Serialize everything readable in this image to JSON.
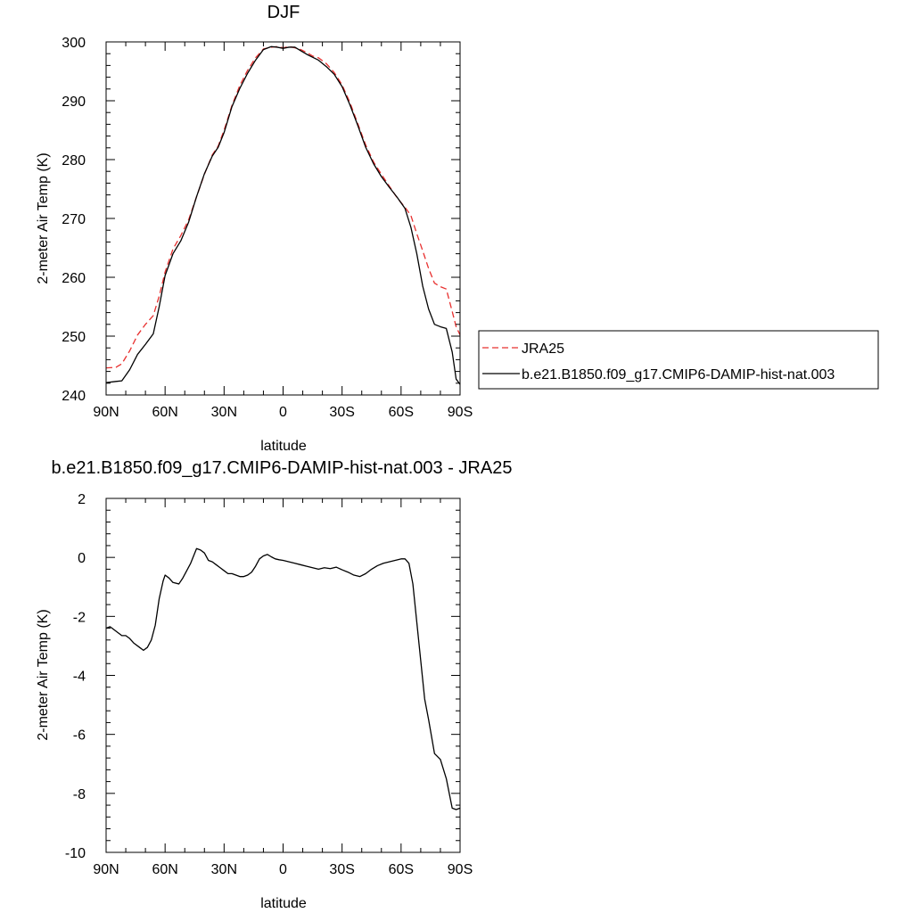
{
  "chart_data": [
    {
      "type": "line",
      "title": "DJF",
      "xlabel": "latitude",
      "ylabel": "2-meter Air Temp (K)",
      "xlim": [
        -90,
        90
      ],
      "ylim": [
        240,
        300
      ],
      "x_ticks": [
        -90,
        -60,
        -30,
        0,
        30,
        60,
        90
      ],
      "x_tick_labels": [
        "90N",
        "60N",
        "30N",
        "0",
        "30S",
        "60S",
        "90S"
      ],
      "y_ticks": [
        240,
        250,
        260,
        270,
        280,
        290,
        300
      ],
      "y_tick_labels": [
        "240",
        "250",
        "260",
        "270",
        "280",
        "290",
        "300"
      ],
      "x_minor_step": 10,
      "y_minor_step": 2,
      "legend_placement": "right",
      "series": [
        {
          "name": "JRA25",
          "color": "#e8302f",
          "dash": "dashed",
          "x": [
            -90,
            -85,
            -82,
            -78,
            -74,
            -70,
            -66,
            -63,
            -60,
            -56,
            -52,
            -48,
            -44,
            -40,
            -36,
            -33,
            -30,
            -26,
            -22,
            -18,
            -14,
            -10,
            -6,
            -3,
            0,
            3,
            6,
            9,
            12,
            15,
            18,
            22,
            26,
            30,
            34,
            38,
            42,
            46,
            50,
            54,
            58,
            62,
            65,
            68,
            71,
            74,
            77,
            80,
            83,
            86,
            88,
            90
          ],
          "y": [
            244.6,
            244.7,
            245.3,
            247.5,
            250.2,
            252.0,
            253.5,
            256.8,
            260.9,
            264.8,
            267.1,
            269.8,
            273.7,
            277.5,
            280.8,
            282.3,
            285.0,
            289.2,
            292.6,
            295.2,
            297.3,
            298.8,
            299.1,
            299.2,
            299.0,
            299.2,
            299.0,
            298.7,
            298.2,
            297.6,
            297.3,
            296.3,
            294.8,
            292.7,
            289.7,
            286.1,
            282.5,
            279.6,
            277.5,
            275.5,
            273.5,
            271.9,
            270.5,
            267.4,
            264.5,
            261.5,
            259.0,
            258.4,
            258.0,
            254.2,
            251.6,
            250.2
          ]
        },
        {
          "name": "b.e21.B1850.f09_g17.CMIP6-DAMIP-hist-nat.003",
          "color": "#000000",
          "dash": "solid",
          "x": [
            -90,
            -85,
            -82,
            -78,
            -74,
            -70,
            -66,
            -63,
            -60,
            -56,
            -52,
            -48,
            -44,
            -40,
            -36,
            -33,
            -30,
            -26,
            -22,
            -18,
            -14,
            -10,
            -6,
            -3,
            0,
            3,
            6,
            9,
            12,
            15,
            18,
            22,
            26,
            30,
            34,
            38,
            42,
            46,
            50,
            54,
            58,
            62,
            65,
            68,
            71,
            74,
            77,
            80,
            83,
            86,
            88,
            90
          ],
          "y": [
            242.1,
            242.3,
            242.4,
            244.3,
            246.9,
            248.6,
            250.4,
            255.0,
            260.3,
            264.0,
            266.2,
            269.4,
            273.7,
            277.6,
            280.6,
            282.1,
            284.6,
            289.0,
            292.1,
            294.7,
            296.9,
            298.7,
            299.2,
            299.1,
            298.9,
            299.1,
            299.1,
            298.5,
            297.9,
            297.4,
            296.9,
            295.8,
            294.5,
            292.4,
            289.3,
            285.8,
            282.1,
            279.3,
            277.1,
            275.3,
            273.6,
            271.7,
            268.5,
            264.0,
            258.5,
            254.6,
            252.0,
            251.6,
            251.3,
            247.3,
            242.7,
            241.8
          ]
        }
      ]
    },
    {
      "type": "line",
      "title": "b.e21.B1850.f09_g17.CMIP6-DAMIP-hist-nat.003 - JRA25",
      "xlabel": "latitude",
      "ylabel": "2-meter Air Temp (K)",
      "xlim": [
        -90,
        90
      ],
      "ylim": [
        -10,
        2
      ],
      "x_ticks": [
        -90,
        -60,
        -30,
        0,
        30,
        60,
        90
      ],
      "x_tick_labels": [
        "90N",
        "60N",
        "30N",
        "0",
        "30S",
        "60S",
        "90S"
      ],
      "y_ticks": [
        -10,
        -8,
        -6,
        -4,
        -2,
        0,
        2
      ],
      "y_tick_labels": [
        "-10",
        "-8",
        "-6",
        "-4",
        "-2",
        "0",
        "2"
      ],
      "x_minor_step": 10,
      "y_minor_step": 0.4,
      "series": [
        {
          "color": "#000000",
          "dash": "solid",
          "x": [
            -90,
            -88,
            -85,
            -82,
            -80,
            -78,
            -76,
            -73,
            -71,
            -69,
            -67,
            -65,
            -63,
            -61,
            -60,
            -58,
            -56,
            -53,
            -51,
            -49,
            -47,
            -44,
            -42,
            -40,
            -38,
            -36,
            -34,
            -32,
            -30,
            -28,
            -26,
            -24,
            -22,
            -20,
            -18,
            -16,
            -14,
            -12,
            -10,
            -8,
            -6,
            -4,
            -2,
            0,
            3,
            6,
            9,
            12,
            15,
            18,
            21,
            24,
            27,
            30,
            33,
            36,
            39,
            42,
            45,
            48,
            51,
            54,
            57,
            60,
            62,
            64,
            66,
            68,
            70,
            72,
            74,
            77,
            80,
            83,
            86,
            88,
            90
          ],
          "y": [
            -2.4,
            -2.35,
            -2.5,
            -2.65,
            -2.65,
            -2.75,
            -2.9,
            -3.05,
            -3.15,
            -3.05,
            -2.8,
            -2.3,
            -1.4,
            -0.8,
            -0.6,
            -0.7,
            -0.85,
            -0.9,
            -0.7,
            -0.45,
            -0.2,
            0.3,
            0.25,
            0.15,
            -0.1,
            -0.15,
            -0.25,
            -0.35,
            -0.45,
            -0.55,
            -0.55,
            -0.6,
            -0.65,
            -0.65,
            -0.6,
            -0.5,
            -0.3,
            -0.05,
            0.05,
            0.1,
            0.02,
            -0.05,
            -0.08,
            -0.1,
            -0.15,
            -0.2,
            -0.25,
            -0.3,
            -0.35,
            -0.4,
            -0.35,
            -0.38,
            -0.33,
            -0.42,
            -0.5,
            -0.6,
            -0.65,
            -0.55,
            -0.4,
            -0.28,
            -0.2,
            -0.15,
            -0.1,
            -0.05,
            -0.05,
            -0.2,
            -0.9,
            -2.2,
            -3.5,
            -4.8,
            -5.5,
            -6.65,
            -6.85,
            -7.5,
            -8.5,
            -8.55,
            -8.5
          ]
        }
      ]
    }
  ]
}
